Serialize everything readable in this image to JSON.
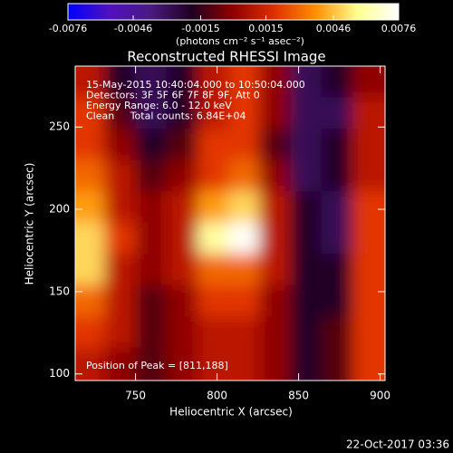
{
  "chart_data": {
    "type": "image",
    "title": "Reconstructed RHESSI Image",
    "colorbar_label": "(photons cm⁻² s⁻¹ asec⁻²)",
    "xlabel": "Heliocentric X (arcsec)",
    "ylabel": "Heliocentric Y (arcsec)",
    "info": [
      "15-May-2015 10:40:04.000 to 10:50:04.000",
      "Detectors: 3F 5F 6F 7F 8F 9F, Att 0",
      "Energy Range: 6.0 - 12.0 keV",
      "Clean     Total counts: 6.84E+04"
    ],
    "annotation": "Position of Peak = [811,188]",
    "timestamp": "22-Oct-2017 03:36",
    "xlim": [
      713,
      903
    ],
    "ylim": [
      96,
      287
    ],
    "xticks": [
      750,
      800,
      850,
      900
    ],
    "yticks": [
      100,
      150,
      200,
      250
    ],
    "zlim": [
      -0.0076,
      0.0076
    ],
    "zticks": [
      -0.0076,
      -0.0046,
      -0.0015,
      0.0015,
      0.0046,
      0.0076
    ],
    "colormap": [
      "#0000ff",
      "#5010c0",
      "#4a1a80",
      "#200020",
      "#900000",
      "#e03000",
      "#ff9000",
      "#ffff90",
      "#ffffff"
    ],
    "x": [
      722,
      741,
      760,
      779,
      798,
      817,
      836,
      855,
      874,
      893
    ],
    "y": [
      277,
      258,
      239,
      220,
      201,
      182,
      163,
      144,
      125,
      106
    ],
    "z": [
      [
        0.001,
        -0.002,
        -0.003,
        -0.002,
        0.001,
        0.002,
        0,
        -0.003,
        -0.002,
        0
      ],
      [
        0.002,
        -0.001,
        -0.003,
        -0.002,
        0.001,
        0.002,
        0,
        -0.003,
        -0.003,
        0.001
      ],
      [
        0.002,
        0,
        -0.002,
        -0.001,
        0.002,
        0.002,
        -0.001,
        -0.003,
        -0.002,
        0.001
      ],
      [
        0.003,
        0.001,
        -0.001,
        0,
        0.002,
        0.003,
        0,
        -0.003,
        -0.002,
        0.001
      ],
      [
        0.004,
        0.001,
        0,
        0.001,
        0.004,
        0.005,
        0.001,
        -0.002,
        -0.003,
        0.002
      ],
      [
        0.005,
        0.002,
        0,
        0.001,
        0.006,
        0.0075,
        0.001,
        -0.002,
        -0.003,
        0.002
      ],
      [
        0.005,
        0.001,
        0,
        0.001,
        0.003,
        0.003,
        0.001,
        -0.002,
        -0.002,
        0.002
      ],
      [
        0.003,
        0.001,
        -0.001,
        0,
        0.002,
        0.002,
        0,
        -0.002,
        -0.002,
        0.002
      ],
      [
        0.002,
        0.001,
        -0.001,
        0,
        0.001,
        0.001,
        0,
        -0.002,
        -0.001,
        0.002
      ],
      [
        0.001,
        0,
        -0.001,
        0,
        0.001,
        0.001,
        0,
        -0.002,
        -0.001,
        0.002
      ]
    ]
  }
}
